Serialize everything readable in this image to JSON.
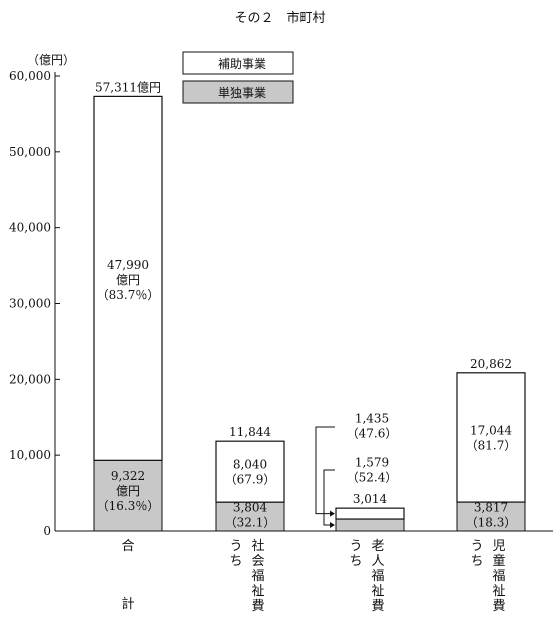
{
  "chart_data": {
    "type": "bar",
    "stacked": true,
    "title": "その２　市町村",
    "ylabel": "（億円）",
    "ylim": [
      0,
      60000
    ],
    "yticks": [
      0,
      10000,
      20000,
      30000,
      40000,
      50000,
      60000
    ],
    "ytick_labels": [
      "0",
      "10,000",
      "20,000",
      "30,000",
      "40,000",
      "50,000",
      "60,000"
    ],
    "legend": {
      "placement": "top",
      "items": [
        "補助事業",
        "単独事業"
      ]
    },
    "grid": false,
    "colors": {
      "hojo": "#ffffff",
      "tandoku": "#c8c8c8",
      "line": "#111111"
    },
    "categories": [
      {
        "label_top": "合",
        "label_bottom": "計",
        "uchi": ""
      },
      {
        "label_top": "社会福祉費",
        "label_bottom": "",
        "uchi": "うち"
      },
      {
        "label_top": "老人福祉費",
        "label_bottom": "",
        "uchi": "うち"
      },
      {
        "label_top": "児童福祉費",
        "label_bottom": "",
        "uchi": "うち"
      }
    ],
    "series": [
      {
        "name": "単独事業",
        "values": [
          9322,
          3804,
          1579,
          3817
        ]
      },
      {
        "name": "補助事業",
        "values": [
          47990,
          8040,
          1435,
          17044
        ]
      }
    ],
    "totals": [
      57311,
      11844,
      3014,
      20862
    ],
    "total_labels": [
      "57,311億円",
      "11,844",
      "3,014",
      "20,862"
    ],
    "hojo_labels": [
      [
        "47,990",
        "億円",
        "（83.7％）"
      ],
      [
        "8,040",
        "（67.9）"
      ],
      [
        "1,435",
        "（47.6）"
      ],
      [
        "17,044",
        "（81.7）"
      ]
    ],
    "tandoku_labels": [
      [
        "9,322",
        "億円",
        "（16.3％）"
      ],
      [
        "3,804",
        "（32.1）"
      ],
      [
        "1,579",
        "（52.4）"
      ],
      [
        "3,817",
        "（18.3）"
      ]
    ]
  }
}
